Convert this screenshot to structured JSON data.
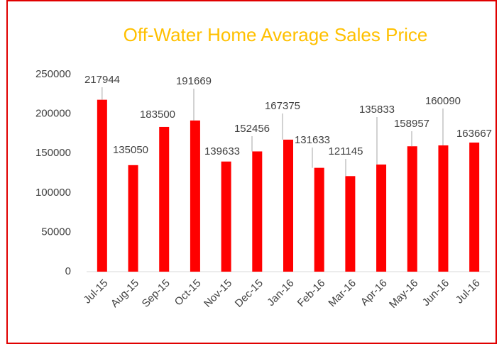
{
  "chart_data": {
    "type": "bar",
    "title": "Off-Water Home Average Sales Price",
    "categories": [
      "Jul-15",
      "Aug-15",
      "Sep-15",
      "Oct-15",
      "Nov-15",
      "Dec-15",
      "Jan-16",
      "Feb-16",
      "Mar-16",
      "Apr-16",
      "May-16",
      "Jun-16",
      "Jul-16"
    ],
    "values": [
      217944,
      135050,
      183500,
      191669,
      139633,
      152456,
      167375,
      131633,
      121145,
      135833,
      158957,
      160090,
      163667
    ],
    "color": "#ff0000",
    "ylim": [
      0,
      250000
    ],
    "yticks": [
      0,
      50000,
      100000,
      150000,
      200000,
      250000
    ],
    "grid": false
  }
}
